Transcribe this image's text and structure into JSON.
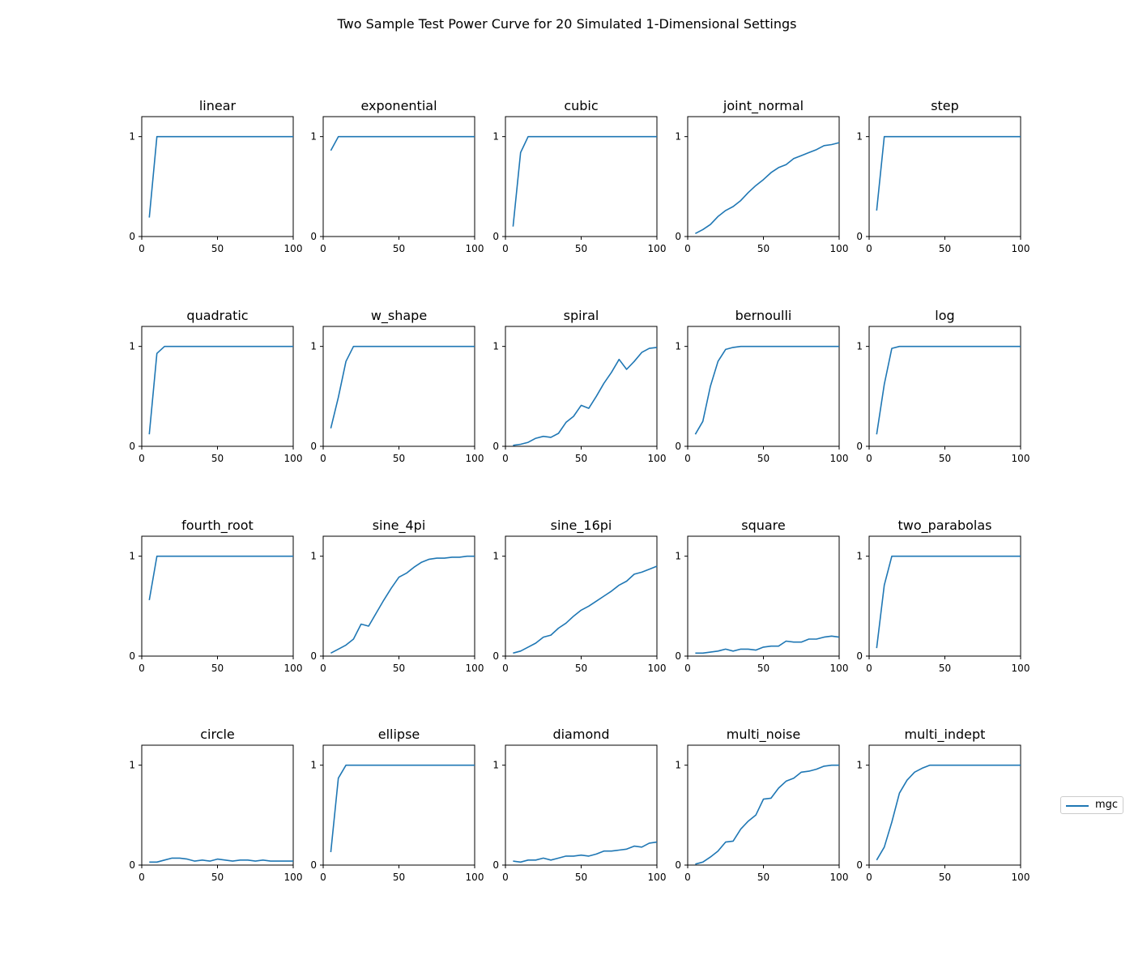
{
  "title": "Two Sample Test Power Curve for 20 Simulated 1-Dimensional Settings",
  "legend": {
    "label": "mgc",
    "color": "#1f77b4"
  },
  "chart_data": {
    "type": "line",
    "title": "Two Sample Test Power Curve for 20 Simulated 1-Dimensional Settings",
    "series_name": "mgc",
    "xlim": [
      0,
      100
    ],
    "ylim": [
      0,
      1.2
    ],
    "x_ticks": [
      0,
      50,
      100
    ],
    "y_ticks": [
      0,
      1
    ],
    "legend_position": "right",
    "color": "#1f77b4",
    "x": [
      5,
      10,
      15,
      20,
      25,
      30,
      35,
      40,
      45,
      50,
      55,
      60,
      65,
      70,
      75,
      80,
      85,
      90,
      95,
      100
    ],
    "subplots": [
      {
        "title": "linear",
        "values": [
          0.19,
          1.0,
          1.0,
          1.0,
          1.0,
          1.0,
          1.0,
          1.0,
          1.0,
          1.0,
          1.0,
          1.0,
          1.0,
          1.0,
          1.0,
          1.0,
          1.0,
          1.0,
          1.0,
          1.0
        ]
      },
      {
        "title": "exponential",
        "values": [
          0.86,
          1.0,
          1.0,
          1.0,
          1.0,
          1.0,
          1.0,
          1.0,
          1.0,
          1.0,
          1.0,
          1.0,
          1.0,
          1.0,
          1.0,
          1.0,
          1.0,
          1.0,
          1.0,
          1.0
        ]
      },
      {
        "title": "cubic",
        "values": [
          0.1,
          0.84,
          1.0,
          1.0,
          1.0,
          1.0,
          1.0,
          1.0,
          1.0,
          1.0,
          1.0,
          1.0,
          1.0,
          1.0,
          1.0,
          1.0,
          1.0,
          1.0,
          1.0,
          1.0
        ]
      },
      {
        "title": "joint_normal",
        "values": [
          0.03,
          0.07,
          0.12,
          0.2,
          0.26,
          0.3,
          0.36,
          0.44,
          0.51,
          0.57,
          0.64,
          0.69,
          0.72,
          0.78,
          0.81,
          0.84,
          0.87,
          0.91,
          0.92,
          0.94
        ]
      },
      {
        "title": "step",
        "values": [
          0.26,
          1.0,
          1.0,
          1.0,
          1.0,
          1.0,
          1.0,
          1.0,
          1.0,
          1.0,
          1.0,
          1.0,
          1.0,
          1.0,
          1.0,
          1.0,
          1.0,
          1.0,
          1.0,
          1.0
        ]
      },
      {
        "title": "quadratic",
        "values": [
          0.12,
          0.93,
          1.0,
          1.0,
          1.0,
          1.0,
          1.0,
          1.0,
          1.0,
          1.0,
          1.0,
          1.0,
          1.0,
          1.0,
          1.0,
          1.0,
          1.0,
          1.0,
          1.0,
          1.0
        ]
      },
      {
        "title": "w_shape",
        "values": [
          0.18,
          0.49,
          0.85,
          1.0,
          1.0,
          1.0,
          1.0,
          1.0,
          1.0,
          1.0,
          1.0,
          1.0,
          1.0,
          1.0,
          1.0,
          1.0,
          1.0,
          1.0,
          1.0,
          1.0
        ]
      },
      {
        "title": "spiral",
        "values": [
          0.01,
          0.02,
          0.04,
          0.08,
          0.1,
          0.09,
          0.13,
          0.24,
          0.3,
          0.41,
          0.38,
          0.5,
          0.63,
          0.74,
          0.87,
          0.77,
          0.85,
          0.94,
          0.98,
          0.99
        ]
      },
      {
        "title": "bernoulli",
        "values": [
          0.12,
          0.25,
          0.6,
          0.85,
          0.97,
          0.99,
          1.0,
          1.0,
          1.0,
          1.0,
          1.0,
          1.0,
          1.0,
          1.0,
          1.0,
          1.0,
          1.0,
          1.0,
          1.0,
          1.0
        ]
      },
      {
        "title": "log",
        "values": [
          0.12,
          0.62,
          0.98,
          1.0,
          1.0,
          1.0,
          1.0,
          1.0,
          1.0,
          1.0,
          1.0,
          1.0,
          1.0,
          1.0,
          1.0,
          1.0,
          1.0,
          1.0,
          1.0,
          1.0
        ]
      },
      {
        "title": "fourth_root",
        "values": [
          0.56,
          1.0,
          1.0,
          1.0,
          1.0,
          1.0,
          1.0,
          1.0,
          1.0,
          1.0,
          1.0,
          1.0,
          1.0,
          1.0,
          1.0,
          1.0,
          1.0,
          1.0,
          1.0,
          1.0
        ]
      },
      {
        "title": "sine_4pi",
        "values": [
          0.03,
          0.07,
          0.11,
          0.17,
          0.32,
          0.3,
          0.43,
          0.56,
          0.68,
          0.79,
          0.83,
          0.89,
          0.94,
          0.97,
          0.98,
          0.98,
          0.99,
          0.99,
          1.0,
          1.0
        ]
      },
      {
        "title": "sine_16pi",
        "values": [
          0.03,
          0.05,
          0.09,
          0.13,
          0.19,
          0.21,
          0.28,
          0.33,
          0.4,
          0.46,
          0.5,
          0.55,
          0.6,
          0.65,
          0.71,
          0.75,
          0.82,
          0.84,
          0.87,
          0.9
        ]
      },
      {
        "title": "square",
        "values": [
          0.03,
          0.03,
          0.04,
          0.05,
          0.07,
          0.05,
          0.07,
          0.07,
          0.06,
          0.09,
          0.1,
          0.1,
          0.15,
          0.14,
          0.14,
          0.17,
          0.17,
          0.19,
          0.2,
          0.19
        ]
      },
      {
        "title": "two_parabolas",
        "values": [
          0.08,
          0.71,
          1.0,
          1.0,
          1.0,
          1.0,
          1.0,
          1.0,
          1.0,
          1.0,
          1.0,
          1.0,
          1.0,
          1.0,
          1.0,
          1.0,
          1.0,
          1.0,
          1.0,
          1.0
        ]
      },
      {
        "title": "circle",
        "values": [
          0.03,
          0.03,
          0.05,
          0.07,
          0.07,
          0.06,
          0.04,
          0.05,
          0.04,
          0.06,
          0.05,
          0.04,
          0.05,
          0.05,
          0.04,
          0.05,
          0.04,
          0.04,
          0.04,
          0.04
        ]
      },
      {
        "title": "ellipse",
        "values": [
          0.13,
          0.87,
          1.0,
          1.0,
          1.0,
          1.0,
          1.0,
          1.0,
          1.0,
          1.0,
          1.0,
          1.0,
          1.0,
          1.0,
          1.0,
          1.0,
          1.0,
          1.0,
          1.0,
          1.0
        ]
      },
      {
        "title": "diamond",
        "values": [
          0.04,
          0.03,
          0.05,
          0.05,
          0.07,
          0.05,
          0.07,
          0.09,
          0.09,
          0.1,
          0.09,
          0.11,
          0.14,
          0.14,
          0.15,
          0.16,
          0.19,
          0.18,
          0.22,
          0.23
        ]
      },
      {
        "title": "multi_noise",
        "values": [
          0.01,
          0.03,
          0.08,
          0.14,
          0.23,
          0.24,
          0.36,
          0.44,
          0.5,
          0.66,
          0.67,
          0.77,
          0.84,
          0.87,
          0.93,
          0.94,
          0.96,
          0.99,
          1.0,
          1.0
        ]
      },
      {
        "title": "multi_indept",
        "values": [
          0.05,
          0.18,
          0.43,
          0.72,
          0.85,
          0.93,
          0.97,
          1.0,
          1.0,
          1.0,
          1.0,
          1.0,
          1.0,
          1.0,
          1.0,
          1.0,
          1.0,
          1.0,
          1.0,
          1.0
        ]
      }
    ]
  }
}
